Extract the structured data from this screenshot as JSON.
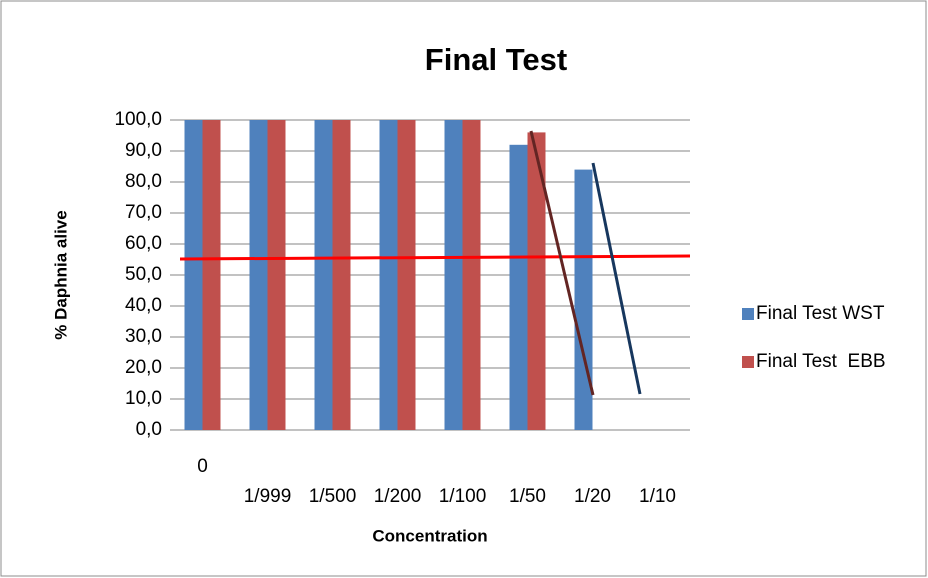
{
  "chart_data": {
    "type": "bar",
    "title": "Final Test",
    "x_label": "Concentration",
    "y_label": "% Daphnia alive",
    "categories": [
      "0",
      "1/999",
      "1/500",
      "1/200",
      "1/100",
      "1/50",
      "1/20",
      "1/10"
    ],
    "series": [
      {
        "name": "Final Test WST",
        "color": "#4f81bd",
        "values": [
          100,
          100,
          100,
          100,
          100,
          92,
          84,
          0
        ]
      },
      {
        "name": "Final Test  EBB",
        "color": "#c0504d",
        "values": [
          100,
          100,
          100,
          100,
          100,
          96,
          0,
          0
        ]
      }
    ],
    "ylim": [
      0,
      100
    ],
    "yticks": [
      {
        "value": 0,
        "label": "0,0"
      },
      {
        "value": 10,
        "label": "10,0"
      },
      {
        "value": 20,
        "label": "20,0"
      },
      {
        "value": 30,
        "label": "30,0"
      },
      {
        "value": 40,
        "label": "40,0"
      },
      {
        "value": 50,
        "label": "50,0"
      },
      {
        "value": 60,
        "label": "60,0"
      },
      {
        "value": 70,
        "label": "70,0"
      },
      {
        "value": 80,
        "label": "80,0"
      },
      {
        "value": 90,
        "label": "90,0"
      },
      {
        "value": 100,
        "label": "100,0"
      }
    ],
    "grid": true,
    "legend": "right"
  }
}
